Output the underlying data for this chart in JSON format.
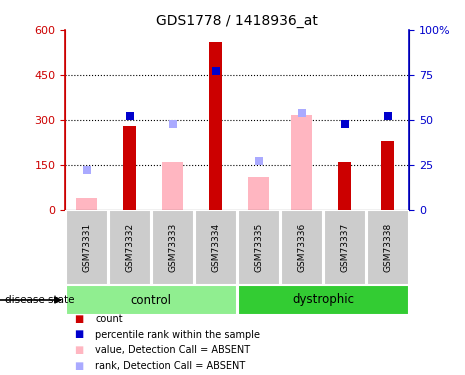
{
  "title": "GDS1778 / 1418936_at",
  "samples": [
    "GSM73331",
    "GSM73332",
    "GSM73333",
    "GSM73334",
    "GSM73335",
    "GSM73336",
    "GSM73337",
    "GSM73338"
  ],
  "red_bars": [
    0,
    280,
    0,
    560,
    0,
    0,
    160,
    230
  ],
  "pink_bars": [
    40,
    0,
    160,
    0,
    110,
    315,
    0,
    0
  ],
  "blue_squares_val": [
    null,
    52,
    null,
    77,
    null,
    54,
    48,
    52
  ],
  "light_blue_squares_val": [
    22,
    null,
    48,
    null,
    27,
    54,
    null,
    null
  ],
  "groups": [
    {
      "label": "control",
      "indices": [
        0,
        1,
        2,
        3
      ],
      "color": "#90EE90"
    },
    {
      "label": "dystrophic",
      "indices": [
        4,
        5,
        6,
        7
      ],
      "color": "#33CC33"
    }
  ],
  "ylim_left": [
    0,
    600
  ],
  "ylim_right": [
    0,
    100
  ],
  "yticks_left": [
    0,
    150,
    300,
    450,
    600
  ],
  "ytick_labels_left": [
    "0",
    "150",
    "300",
    "450",
    "600"
  ],
  "yticks_right": [
    0,
    25,
    50,
    75,
    100
  ],
  "ytick_labels_right": [
    "0",
    "25",
    "50",
    "75",
    "100%"
  ],
  "red_color": "#CC0000",
  "pink_color": "#FFB6C1",
  "blue_color": "#0000CC",
  "light_blue_color": "#AAAAFF",
  "bg_color": "#FFFFFF",
  "sample_box_color": "#CCCCCC",
  "bar_width": 0.5,
  "marker_size": 6
}
